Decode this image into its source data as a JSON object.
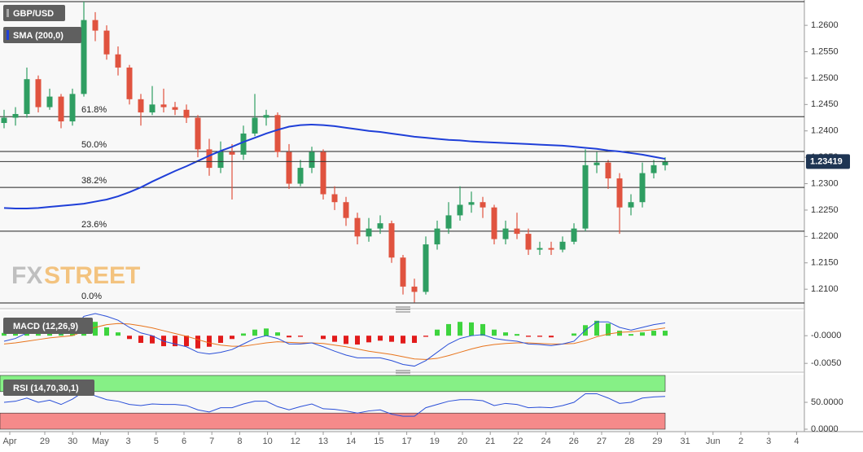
{
  "chart_data": [
    {
      "type": "candlestick",
      "symbol": "GBP/USD",
      "watermark": {
        "left": "FX",
        "right": "STREET"
      },
      "x_labels": [
        "Apr",
        "29",
        "30",
        "May",
        "3",
        "5",
        "6",
        "7",
        "8",
        "10",
        "12",
        "13",
        "14",
        "15",
        "17",
        "19",
        "20",
        "21",
        "22",
        "24",
        "26",
        "27",
        "28",
        "29",
        "31",
        "Jun",
        "2",
        "3",
        "4"
      ],
      "open": [
        1.2415,
        1.2425,
        1.2432,
        1.2498,
        1.2445,
        1.2465,
        1.2418,
        1.247,
        1.261,
        1.259,
        1.2545,
        1.252,
        1.246,
        1.2435,
        1.245,
        1.2445,
        1.244,
        1.2425,
        1.2365,
        1.233,
        1.236,
        1.2355,
        1.2395,
        1.2425,
        1.243,
        1.236,
        1.23,
        1.233,
        1.236,
        1.228,
        1.2265,
        1.2235,
        1.22,
        1.2215,
        1.2225,
        1.216,
        1.2105,
        1.2095,
        1.2185,
        1.2215,
        1.224,
        1.226,
        1.2265,
        1.2255,
        1.2195,
        1.2215,
        1.2205,
        1.2175,
        1.2178,
        1.2175,
        1.219,
        1.2215,
        1.2335,
        1.234,
        1.231,
        1.2255,
        1.2265,
        1.232,
        1.2335
      ],
      "high": [
        1.244,
        1.2445,
        1.252,
        1.2505,
        1.248,
        1.247,
        1.248,
        1.2645,
        1.2625,
        1.26,
        1.256,
        1.2525,
        1.247,
        1.2485,
        1.248,
        1.2455,
        1.245,
        1.243,
        1.2385,
        1.238,
        1.2375,
        1.241,
        1.247,
        1.244,
        1.2435,
        1.2375,
        1.2345,
        1.237,
        1.2365,
        1.2295,
        1.2275,
        1.2245,
        1.2235,
        1.224,
        1.223,
        1.2165,
        1.212,
        1.22,
        1.223,
        1.2265,
        1.2295,
        1.2285,
        1.2275,
        1.226,
        1.223,
        1.2245,
        1.2215,
        1.219,
        1.219,
        1.22,
        1.2225,
        1.2365,
        1.236,
        1.2345,
        1.232,
        1.228,
        1.234,
        1.2345,
        1.235
      ],
      "low": [
        1.2405,
        1.241,
        1.2425,
        1.2435,
        1.244,
        1.2405,
        1.241,
        1.2465,
        1.257,
        1.2535,
        1.2505,
        1.245,
        1.241,
        1.243,
        1.2435,
        1.243,
        1.2415,
        1.235,
        1.2315,
        1.232,
        1.227,
        1.2345,
        1.239,
        1.241,
        1.235,
        1.229,
        1.2295,
        1.232,
        1.227,
        1.225,
        1.222,
        1.2185,
        1.219,
        1.2205,
        1.215,
        1.209,
        1.2075,
        1.209,
        1.2175,
        1.2205,
        1.223,
        1.2245,
        1.2235,
        1.2185,
        1.2185,
        1.2195,
        1.2165,
        1.2165,
        1.2165,
        1.217,
        1.2185,
        1.221,
        1.232,
        1.229,
        1.2205,
        1.224,
        1.2255,
        1.231,
        1.2325
      ],
      "close": [
        1.2425,
        1.2432,
        1.2498,
        1.2445,
        1.2465,
        1.2418,
        1.247,
        1.261,
        1.259,
        1.2545,
        1.252,
        1.246,
        1.2435,
        1.245,
        1.2445,
        1.244,
        1.2425,
        1.2365,
        1.233,
        1.236,
        1.2355,
        1.2395,
        1.2425,
        1.243,
        1.236,
        1.23,
        1.233,
        1.236,
        1.228,
        1.2265,
        1.2235,
        1.22,
        1.2215,
        1.2225,
        1.216,
        1.2105,
        1.2095,
        1.2185,
        1.2215,
        1.224,
        1.226,
        1.2265,
        1.2255,
        1.2195,
        1.2215,
        1.2205,
        1.2175,
        1.2178,
        1.2175,
        1.219,
        1.2215,
        1.2335,
        1.234,
        1.231,
        1.2255,
        1.2265,
        1.232,
        1.2335,
        1.2342
      ],
      "up_color": "#2f9e62",
      "down_color": "#e0533f",
      "series": [
        {
          "name": "SMA (200,0)",
          "color": "#1f3fd8",
          "values": [
            1.2254,
            1.2253,
            1.2253,
            1.2254,
            1.2256,
            1.2258,
            1.226,
            1.2262,
            1.2266,
            1.227,
            1.2276,
            1.2284,
            1.2293,
            1.2304,
            1.2314,
            1.2324,
            1.2333,
            1.2343,
            1.2353,
            1.2362,
            1.237,
            1.2379,
            1.2387,
            1.2395,
            1.2402,
            1.2408,
            1.2411,
            1.2412,
            1.2411,
            1.2409,
            1.2406,
            1.2403,
            1.24,
            1.2398,
            1.2395,
            1.2392,
            1.2389,
            1.2387,
            1.2385,
            1.2383,
            1.2382,
            1.238,
            1.2379,
            1.2378,
            1.2377,
            1.2376,
            1.2375,
            1.2374,
            1.2373,
            1.2372,
            1.237,
            1.2368,
            1.2366,
            1.2363,
            1.2361,
            1.2358,
            1.2355,
            1.2351,
            1.2347
          ]
        }
      ],
      "fib_levels": [
        {
          "label": null,
          "value": 1.2645
        },
        {
          "label": "61.8%",
          "value": 1.2427
        },
        {
          "label": "50.0%",
          "value": 1.2361
        },
        {
          "label": "38.2%",
          "value": 1.2293
        },
        {
          "label": "23.6%",
          "value": 1.221
        },
        {
          "label": "0.0%",
          "value": 1.2074
        }
      ],
      "last_price": 1.23419,
      "ylim": [
        1.2074,
        1.2648
      ],
      "yticks": [
        {
          "value": 1.21,
          "label": "1.2100"
        },
        {
          "value": 1.215,
          "label": "1.2150"
        },
        {
          "value": 1.22,
          "label": "1.2200"
        },
        {
          "value": 1.225,
          "label": "1.2250"
        },
        {
          "value": 1.23,
          "label": "1.2300"
        },
        {
          "value": 1.235,
          "label": "1.2350"
        },
        {
          "value": 1.24,
          "label": "1.2400"
        },
        {
          "value": 1.245,
          "label": "1.2450"
        },
        {
          "value": 1.25,
          "label": "1.2500"
        },
        {
          "value": 1.255,
          "label": "1.2550"
        },
        {
          "value": 1.26,
          "label": "1.2600"
        }
      ]
    },
    {
      "type": "macd",
      "name": "MACD (12,26,9)",
      "macd": {
        "color": "#2a4fd8",
        "values": [
          -0.001,
          -0.0005,
          0.0005,
          0.0005,
          0.0008,
          0.0003,
          0.001,
          0.0035,
          0.004,
          0.0035,
          0.0028,
          0.0015,
          0.0005,
          0.0,
          -0.001,
          -0.0015,
          -0.002,
          -0.003,
          -0.0033,
          -0.003,
          -0.0025,
          -0.0015,
          -0.0005,
          0.0,
          -0.0005,
          -0.0015,
          -0.0015,
          -0.0013,
          -0.002,
          -0.0028,
          -0.0035,
          -0.004,
          -0.004,
          -0.004,
          -0.0045,
          -0.0052,
          -0.0055,
          -0.0045,
          -0.003,
          -0.0015,
          -0.0005,
          0.0,
          0.0002,
          -0.0005,
          -0.0008,
          -0.001,
          -0.0015,
          -0.0016,
          -0.0018,
          -0.0015,
          -0.001,
          0.001,
          0.0025,
          0.0025,
          0.0015,
          0.001,
          0.0015,
          0.002,
          0.0023
        ]
      },
      "signal": {
        "color": "#e8741c",
        "values": [
          -0.0015,
          -0.0013,
          -0.001,
          -0.0007,
          -0.0004,
          -0.0002,
          0.0,
          0.0008,
          0.0015,
          0.002,
          0.0022,
          0.0021,
          0.0018,
          0.0014,
          0.0009,
          0.0004,
          -0.0001,
          -0.0007,
          -0.0013,
          -0.0017,
          -0.0019,
          -0.0019,
          -0.0016,
          -0.0013,
          -0.0011,
          -0.0012,
          -0.0013,
          -0.0013,
          -0.0014,
          -0.0017,
          -0.002,
          -0.0024,
          -0.0028,
          -0.0031,
          -0.0034,
          -0.0038,
          -0.0042,
          -0.0043,
          -0.0041,
          -0.0036,
          -0.003,
          -0.0024,
          -0.0019,
          -0.0016,
          -0.0014,
          -0.0013,
          -0.0013,
          -0.0014,
          -0.0015,
          -0.0015,
          -0.0014,
          -0.0009,
          -0.0002,
          0.0003,
          0.0006,
          0.0007,
          0.0009,
          0.0011,
          0.0014
        ]
      },
      "histogram": {
        "pos_color": "#3ed43e",
        "neg_color": "#e21b1b",
        "values": [
          0.0005,
          0.0008,
          0.0015,
          0.0012,
          0.0012,
          0.0005,
          0.001,
          0.0027,
          0.0025,
          0.0015,
          0.0006,
          -0.0006,
          -0.0013,
          -0.0014,
          -0.0019,
          -0.0019,
          -0.0019,
          -0.0023,
          -0.002,
          -0.0013,
          -0.0006,
          0.0004,
          0.0011,
          0.0013,
          0.0006,
          -0.0003,
          -0.0002,
          0.0,
          -0.0006,
          -0.0011,
          -0.0015,
          -0.0016,
          -0.0012,
          -0.0009,
          -0.0011,
          -0.0014,
          -0.0013,
          -0.0002,
          0.0011,
          0.0021,
          0.0025,
          0.0024,
          0.0021,
          0.0011,
          0.0006,
          0.0003,
          -0.0002,
          -0.0002,
          -0.0003,
          0.0,
          0.0004,
          0.0019,
          0.0027,
          0.0022,
          0.0009,
          0.0003,
          0.0006,
          0.0009,
          0.0009
        ]
      },
      "ylim": [
        -0.0063,
        0.004
      ],
      "yticks": [
        {
          "value": 0,
          "label": "-0.0000"
        },
        {
          "value": -0.005,
          "label": "-0.0050"
        }
      ]
    },
    {
      "type": "rsi",
      "name": "RSI (14,70,30,1)",
      "color": "#2a4fd8",
      "values": [
        50,
        52,
        58,
        50,
        54,
        46,
        56,
        70,
        62,
        55,
        52,
        46,
        44,
        47,
        46,
        46,
        44,
        36,
        32,
        40,
        40,
        47,
        52,
        52,
        42,
        36,
        42,
        47,
        38,
        37,
        34,
        30,
        34,
        36,
        28,
        24,
        24,
        40,
        46,
        52,
        55,
        55,
        53,
        44,
        48,
        46,
        40,
        41,
        40,
        44,
        50,
        66,
        66,
        58,
        48,
        50,
        58,
        60,
        61
      ],
      "overbought": 70,
      "oversold": 30,
      "overbought_color": "#86f086",
      "oversold_color": "#f58a8a",
      "ylim": [
        0,
        100
      ],
      "yticks": [
        {
          "value": 50,
          "label": "50.0000"
        },
        {
          "value": 0,
          "label": "0.0000"
        }
      ]
    }
  ]
}
